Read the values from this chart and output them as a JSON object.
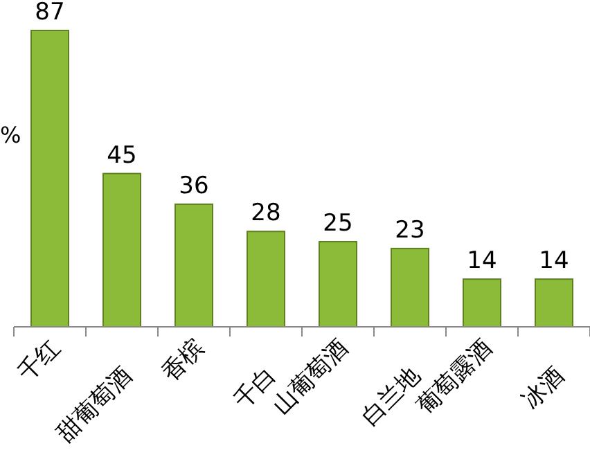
{
  "chart_data": {
    "type": "bar",
    "ylabel": "%",
    "categories": [
      "千红",
      "甜葡萄酒",
      "香槟",
      "千白",
      "山葡萄酒",
      "白兰地",
      "葡萄露酒",
      "冰酒"
    ],
    "values": [
      87,
      45,
      36,
      28,
      25,
      23,
      14,
      14
    ],
    "color": "#8cbb3a",
    "data_labels": true
  }
}
